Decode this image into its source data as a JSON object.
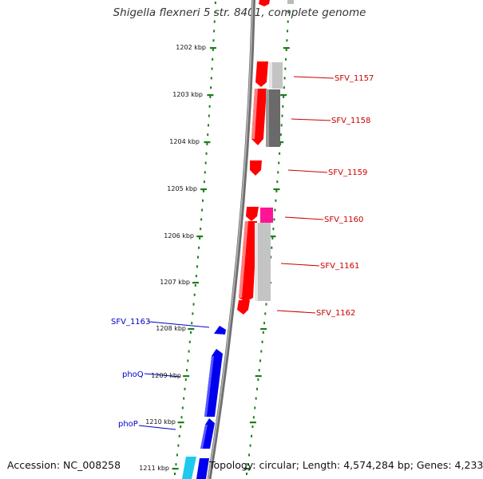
{
  "title": "Shigella flexneri 5 str. 8401, complete genome",
  "footer": {
    "accession": "Accession: NC_008258",
    "topology": "Topology: circular; Length: 4,574,284 bp; Genes: 4,233"
  },
  "colors": {
    "tick": "#1a7f1a",
    "backbone": "#8a8a8a",
    "red_gene": "#ff0000",
    "blue_gene": "#0000ee",
    "cyan_gene": "#1ec8ee",
    "magenta_gene": "#ff1493",
    "gray_light": "#c8c8c8",
    "gray_dark": "#6a6a6a",
    "red_label": "#cc0000",
    "blue_label": "#0000cc"
  },
  "scale_labels": [
    "1202 kbp",
    "1203 kbp",
    "1204 kbp",
    "1205 kbp",
    "1206 kbp",
    "1207 kbp",
    "1208 kbp",
    "1209 kbp",
    "1210 kbp",
    "1211 kbp"
  ],
  "right_genes": [
    "SFV_1157",
    "SFV_1158",
    "SFV_1159",
    "SFV_1160",
    "SFV_1161",
    "SFV_1162"
  ],
  "left_genes": [
    "SFV_1163",
    "phoQ",
    "phoP"
  ]
}
